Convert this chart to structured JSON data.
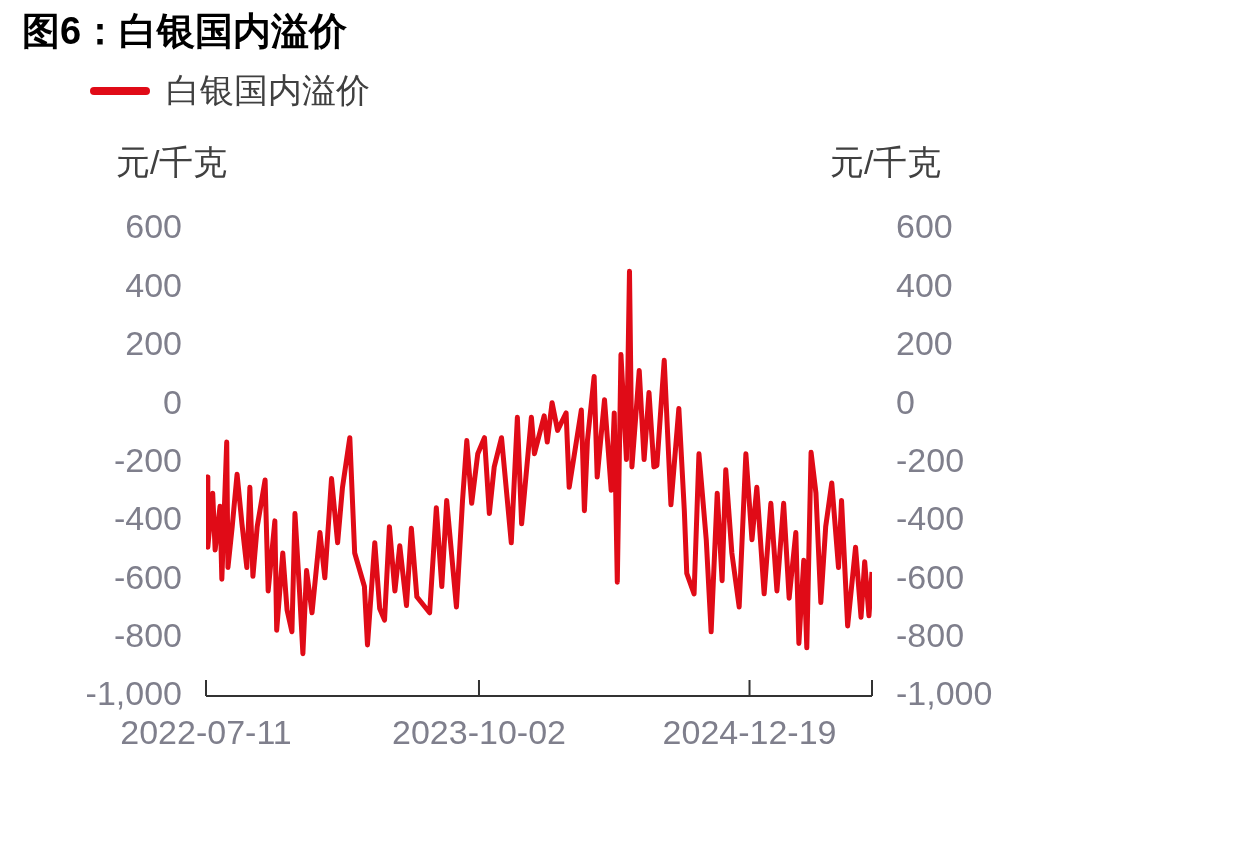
{
  "chart_data": {
    "type": "line",
    "title": "图6：白银国内溢价",
    "ylabel": "元/千克",
    "y2label": "元/千克",
    "xlim": [
      "2022-07-11",
      "2025-07-08"
    ],
    "xticks": [
      "2022-07-11",
      "2023-10-02",
      "2024-12-19"
    ],
    "ylim": [
      -1000,
      600
    ],
    "yticks": [
      {
        "value": -1000,
        "label": "-1,000"
      },
      -800,
      -600,
      -400,
      -200,
      0,
      200,
      400,
      600
    ],
    "y2lim": [
      -1000,
      600
    ],
    "y2ticks": [
      {
        "value": -1000,
        "label": "-1,000"
      },
      -800,
      -600,
      -400,
      -200,
      0,
      200,
      400,
      600
    ],
    "grid": false,
    "legend": "top left",
    "marker": "none",
    "line_style": "solid",
    "x": [
      "2022-07-11",
      "2022-07-13",
      "2022-07-14",
      "2022-07-22",
      "2022-07-26",
      "2022-08-03",
      "2022-08-06",
      "2022-08-14",
      "2022-08-16",
      "2022-08-23",
      "2022-08-31",
      "2022-09-08",
      "2022-09-16",
      "2022-09-21",
      "2022-09-26",
      "2022-10-03",
      "2022-10-16",
      "2022-10-21",
      "2022-11-01",
      "2022-11-04",
      "2022-11-14",
      "2022-11-21",
      "2022-11-29",
      "2022-12-04",
      "2022-12-12",
      "2022-12-17",
      "2022-12-23",
      "2023-01-01",
      "2023-01-14",
      "2023-01-22",
      "2023-02-02",
      "2023-02-12",
      "2023-02-20",
      "2023-03-04",
      "2023-03-12",
      "2023-03-28",
      "2023-04-02",
      "2023-04-14",
      "2023-04-22",
      "2023-04-30",
      "2023-05-08",
      "2023-05-17",
      "2023-05-25",
      "2023-06-05",
      "2023-06-13",
      "2023-06-22",
      "2023-07-13",
      "2023-07-24",
      "2023-08-02",
      "2023-08-10",
      "2023-08-26",
      "2023-09-05",
      "2023-09-12",
      "2023-09-20",
      "2023-09-30",
      "2023-10-11",
      "2023-10-19",
      "2023-10-27",
      "2023-11-08",
      "2023-11-24",
      "2023-12-04",
      "2023-12-11",
      "2023-12-27",
      "2024-01-01",
      "2024-01-17",
      "2024-01-22",
      "2024-01-30",
      "2024-02-08",
      "2024-02-22",
      "2024-02-27",
      "2024-03-18",
      "2024-03-23",
      "2024-03-28",
      "2024-04-08",
      "2024-04-13",
      "2024-04-25",
      "2024-05-06",
      "2024-05-11",
      "2024-05-16",
      "2024-05-22",
      "2024-05-31",
      "2024-06-05",
      "2024-06-09",
      "2024-06-21",
      "2024-06-29",
      "2024-07-07",
      "2024-07-15",
      "2024-07-20",
      "2024-08-01",
      "2024-08-12",
      "2024-08-25",
      "2024-09-03",
      "2024-09-07",
      "2024-09-19",
      "2024-09-27",
      "2024-10-09",
      "2024-10-17",
      "2024-10-27",
      "2024-11-04",
      "2024-11-10",
      "2024-11-20",
      "2024-12-02",
      "2024-12-13",
      "2024-12-23",
      "2024-12-31",
      "2025-01-12",
      "2025-01-23",
      "2025-02-02",
      "2025-02-13",
      "2025-02-22",
      "2025-03-05",
      "2025-03-10",
      "2025-03-18",
      "2025-03-23",
      "2025-03-30",
      "2025-04-07",
      "2025-04-15",
      "2025-04-23",
      "2025-05-03",
      "2025-05-14",
      "2025-05-19",
      "2025-05-29",
      "2025-06-11",
      "2025-06-20",
      "2025-06-26",
      "2025-07-03",
      "2025-07-08"
    ],
    "series": [
      {
        "name": "白银国内溢价",
        "color": "#e00b17",
        "values": [
          -355,
          -250,
          -490,
          -305,
          -500,
          -350,
          -600,
          -130,
          -560,
          -420,
          -240,
          -410,
          -560,
          -285,
          -590,
          -420,
          -260,
          -640,
          -400,
          -775,
          -510,
          -705,
          -780,
          -375,
          -660,
          -855,
          -570,
          -715,
          -440,
          -595,
          -255,
          -475,
          -285,
          -115,
          -510,
          -625,
          -825,
          -475,
          -700,
          -740,
          -420,
          -640,
          -485,
          -690,
          -425,
          -660,
          -715,
          -355,
          -625,
          -330,
          -695,
          -330,
          -125,
          -340,
          -170,
          -115,
          -375,
          -215,
          -115,
          -475,
          -45,
          -410,
          -45,
          -170,
          -40,
          -130,
          5,
          -90,
          -30,
          -285,
          -20,
          -365,
          -125,
          95,
          -250,
          15,
          -295,
          -30,
          -610,
          170,
          -190,
          455,
          -215,
          115,
          -190,
          40,
          -215,
          -210,
          150,
          -345,
          -15,
          -365,
          -580,
          -650,
          -170,
          -465,
          -780,
          -305,
          -605,
          -225,
          -510,
          -695,
          -170,
          -465,
          -285,
          -650,
          -340,
          -640,
          -340,
          -665,
          -440,
          -820,
          -535,
          -835,
          -165,
          -305,
          -680,
          -420,
          -270,
          -560,
          -330,
          -760,
          -490,
          -730,
          -540,
          -725,
          -575
        ]
      }
    ]
  }
}
